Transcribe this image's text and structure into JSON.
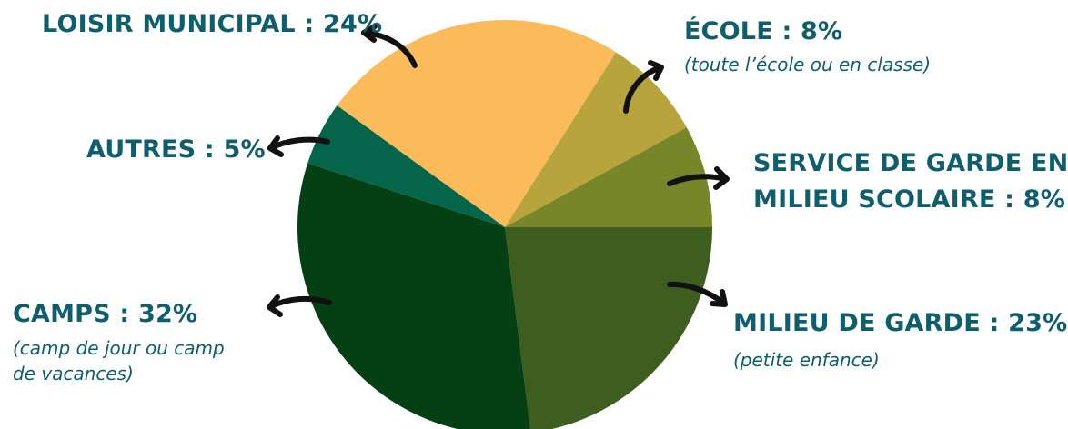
{
  "chart_data": {
    "type": "pie",
    "slices": [
      {
        "label": "MILIEU DE GARDE",
        "value": 23,
        "display": "MILIEU DE GARDE : 23%",
        "note": "(petite enfance)",
        "color": "#3d5e1e"
      },
      {
        "label": "CAMPS",
        "value": 32,
        "display": "CAMPS : 32%",
        "note": "(camp de jour ou camp de vacances)",
        "color": "#053f14"
      },
      {
        "label": "AUTRES",
        "value": 5,
        "display": "AUTRES : 5%",
        "note": "",
        "color": "#04654a"
      },
      {
        "label": "LOISIR MUNICIPAL",
        "value": 24,
        "display": "LOISIR MUNICIPAL : 24%",
        "note": "",
        "color": "#fbbb5b"
      },
      {
        "label": "ÉCOLE",
        "value": 8,
        "display": "ÉCOLE : 8%",
        "note": "(toute l’école ou en classe)",
        "color": "#b8a43c"
      },
      {
        "label": "SERVICE DE GARDE EN MILIEU SCOLAIRE",
        "value": 8,
        "display": "SERVICE DE GARDE EN MILIEU SCOLAIRE : 8%",
        "note": "",
        "color": "#778628"
      }
    ]
  },
  "labels": {
    "loisir": "LOISIR MUNICIPAL : 24%",
    "ecole": "ÉCOLE : 8%",
    "ecole_note": "(toute l’école ou en classe)",
    "autres": "AUTRES : 5%",
    "service_line1": "SERVICE DE GARDE EN",
    "service_line2": "MILIEU SCOLAIRE : 8%",
    "camps": "CAMPS : 32%",
    "camps_note_line1": "(camp de jour ou camp",
    "camps_note_line2": "de vacances)",
    "milieu": "MILIEU DE GARDE : 23%",
    "milieu_note": "(petite enfance)"
  }
}
